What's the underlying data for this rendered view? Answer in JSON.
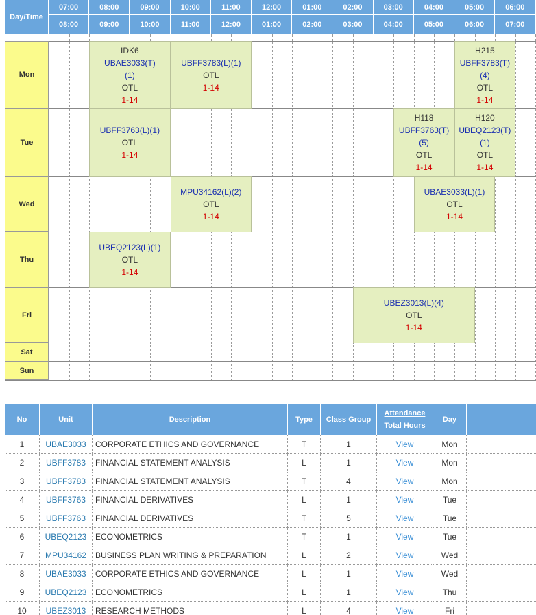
{
  "timetable": {
    "corner": "Day/Time",
    "start_times": [
      "07:00",
      "08:00",
      "09:00",
      "10:00",
      "11:00",
      "12:00",
      "01:00",
      "02:00",
      "03:00",
      "04:00",
      "05:00",
      "06:00"
    ],
    "end_times": [
      "08:00",
      "09:00",
      "10:00",
      "11:00",
      "12:00",
      "01:00",
      "02:00",
      "03:00",
      "04:00",
      "05:00",
      "06:00",
      "07:00"
    ],
    "rows": [
      {
        "day": "Mon",
        "classes": [
          {
            "room": "IDK6",
            "code": [
              "UBAE3033(T)",
              "(1)"
            ],
            "venue": "OTL",
            "weeks": "1-14"
          },
          {
            "code": [
              "UBFF3783(L)(1)"
            ],
            "venue": "OTL",
            "weeks": "1-14"
          },
          {
            "room": "H215",
            "code": [
              "UBFF3783(T)",
              "(4)"
            ],
            "venue": "OTL",
            "weeks": "1-14"
          }
        ]
      },
      {
        "day": "Tue",
        "classes": [
          {
            "code": [
              "UBFF3763(L)(1)"
            ],
            "venue": "OTL",
            "weeks": "1-14"
          },
          {
            "room": "H118",
            "code": [
              "UBFF3763(T)",
              "(5)"
            ],
            "venue": "OTL",
            "weeks": "1-14"
          },
          {
            "room": "H120",
            "code": [
              "UBEQ2123(T)",
              "(1)"
            ],
            "venue": "OTL",
            "weeks": "1-14"
          }
        ]
      },
      {
        "day": "Wed",
        "classes": [
          {
            "code": [
              "MPU34162(L)(2)"
            ],
            "venue": "OTL",
            "weeks": "1-14"
          },
          {
            "code": [
              "UBAE3033(L)(1)"
            ],
            "venue": "OTL",
            "weeks": "1-14"
          }
        ]
      },
      {
        "day": "Thu",
        "classes": [
          {
            "code": [
              "UBEQ2123(L)(1)"
            ],
            "venue": "OTL",
            "weeks": "1-14"
          }
        ]
      },
      {
        "day": "Fri",
        "classes": [
          {
            "code": [
              "UBEZ3013(L)(4)"
            ],
            "venue": "OTL",
            "weeks": "1-14"
          }
        ]
      },
      {
        "day": "Sat",
        "classes": []
      },
      {
        "day": "Sun",
        "classes": []
      }
    ]
  },
  "table": {
    "headers": [
      "No",
      "Unit",
      "Description",
      "Type",
      "Class Group",
      [
        "Attendance",
        "Total Hours"
      ],
      "Day"
    ],
    "rows": [
      [
        1,
        "UBAE3033",
        "CORPORATE ETHICS AND GOVERNANCE",
        "T",
        1,
        "View",
        "Mon"
      ],
      [
        2,
        "UBFF3783",
        "FINANCIAL STATEMENT ANALYSIS",
        "L",
        1,
        "View",
        "Mon"
      ],
      [
        3,
        "UBFF3783",
        "FINANCIAL STATEMENT ANALYSIS",
        "T",
        4,
        "View",
        "Mon"
      ],
      [
        4,
        "UBFF3763",
        "FINANCIAL DERIVATIVES",
        "L",
        1,
        "View",
        "Tue"
      ],
      [
        5,
        "UBFF3763",
        "FINANCIAL DERIVATIVES",
        "T",
        5,
        "View",
        "Tue"
      ],
      [
        6,
        "UBEQ2123",
        "ECONOMETRICS",
        "T",
        1,
        "View",
        "Tue"
      ],
      [
        7,
        "MPU34162",
        "BUSINESS PLAN WRITING & PREPARATION",
        "L",
        2,
        "View",
        "Wed"
      ],
      [
        8,
        "UBAE3033",
        "CORPORATE ETHICS AND GOVERNANCE",
        "L",
        1,
        "View",
        "Wed"
      ],
      [
        9,
        "UBEQ2123",
        "ECONOMETRICS",
        "L",
        1,
        "View",
        "Thu"
      ],
      [
        10,
        "UBEZ3013",
        "RESEARCH METHODS",
        "L",
        4,
        "View",
        "Fri"
      ]
    ]
  }
}
